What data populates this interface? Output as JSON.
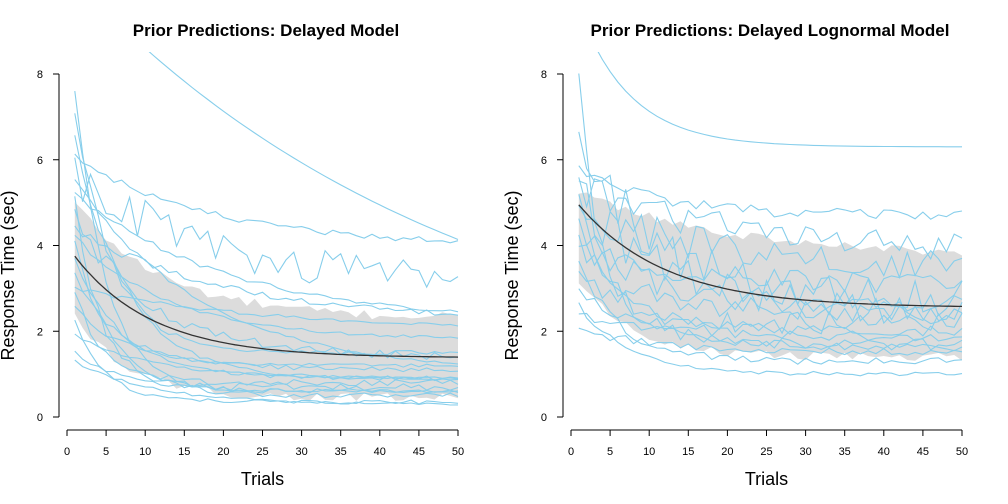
{
  "chart_data": [
    {
      "type": "line",
      "title": "Prior Predictions: Delayed Model",
      "xlabel": "Trials",
      "ylabel": "Response Time (sec)",
      "xlim": [
        0,
        50
      ],
      "ylim": [
        0,
        8
      ],
      "xticks": [
        0,
        5,
        10,
        15,
        20,
        25,
        30,
        35,
        40,
        45,
        50
      ],
      "yticks": [
        0,
        2,
        4,
        6,
        8
      ],
      "grid": false,
      "colors": {
        "band": "#dcdcdc",
        "sample": "#87ceeb",
        "mean": "#333333"
      },
      "mean": {
        "start": 3.75,
        "end": 1.38,
        "rate": 0.1
      },
      "band": {
        "lower_start": 2.4,
        "lower_end": 0.45,
        "lower_rate": 0.15,
        "upper_start": 5.0,
        "upper_end": 2.3,
        "upper_rate": 0.09
      },
      "samples": [
        {
          "start": 10.2,
          "end": 0.5,
          "rate": 0.02,
          "noise": 0.0
        },
        {
          "start": 7.5,
          "end": 0.6,
          "rate": 0.25,
          "noise": 0.15
        },
        {
          "start": 7.0,
          "end": 1.5,
          "rate": 0.2,
          "noise": 0.12
        },
        {
          "start": 6.5,
          "end": 0.9,
          "rate": 0.15,
          "noise": 0.1
        },
        {
          "start": 6.1,
          "end": 4.0,
          "rate": 0.06,
          "noise": 0.05
        },
        {
          "start": 5.8,
          "end": 3.2,
          "rate": 0.07,
          "noise": 0.35
        },
        {
          "start": 5.5,
          "end": 1.0,
          "rate": 0.06,
          "noise": 0.05
        },
        {
          "start": 5.2,
          "end": 2.2,
          "rate": 0.05,
          "noise": 0.05
        },
        {
          "start": 5.0,
          "end": 0.7,
          "rate": 0.3,
          "noise": 0.2
        },
        {
          "start": 4.7,
          "end": 1.4,
          "rate": 0.1,
          "noise": 0.2
        },
        {
          "start": 4.4,
          "end": 2.2,
          "rate": 0.05,
          "noise": 0.08
        },
        {
          "start": 4.2,
          "end": 1.8,
          "rate": 0.08,
          "noise": 0.05
        },
        {
          "start": 4.0,
          "end": 0.5,
          "rate": 0.2,
          "noise": 0.15
        },
        {
          "start": 3.6,
          "end": 0.9,
          "rate": 0.15,
          "noise": 0.15
        },
        {
          "start": 3.3,
          "end": 1.2,
          "rate": 0.18,
          "noise": 0.1
        },
        {
          "start": 3.0,
          "end": 2.0,
          "rate": 0.04,
          "noise": 0.05
        },
        {
          "start": 2.8,
          "end": 0.8,
          "rate": 0.25,
          "noise": 0.18
        },
        {
          "start": 2.5,
          "end": 1.1,
          "rate": 0.12,
          "noise": 0.15
        },
        {
          "start": 2.2,
          "end": 0.35,
          "rate": 0.25,
          "noise": 0.12
        },
        {
          "start": 1.9,
          "end": 0.9,
          "rate": 0.1,
          "noise": 0.08
        },
        {
          "start": 1.5,
          "end": 0.6,
          "rate": 0.15,
          "noise": 0.1
        },
        {
          "start": 1.3,
          "end": 0.3,
          "rate": 0.1,
          "noise": 0.08
        }
      ]
    },
    {
      "type": "line",
      "title": "Prior Predictions: Delayed Lognormal Model",
      "xlabel": "Trials",
      "ylabel": "Response Time (sec)",
      "xlim": [
        0,
        50
      ],
      "ylim": [
        0,
        8
      ],
      "xticks": [
        0,
        5,
        10,
        15,
        20,
        25,
        30,
        35,
        40,
        45,
        50
      ],
      "yticks": [
        0,
        2,
        4,
        6,
        8
      ],
      "grid": false,
      "colors": {
        "band": "#dcdcdc",
        "sample": "#87ceeb",
        "mean": "#333333"
      },
      "mean": {
        "start": 4.95,
        "end": 2.55,
        "rate": 0.09
      },
      "band": {
        "lower_start": 3.2,
        "lower_end": 1.4,
        "lower_rate": 0.15,
        "upper_start": 5.2,
        "upper_end": 3.7,
        "upper_rate": 0.05
      },
      "samples": [
        {
          "start": 9.5,
          "end": 6.3,
          "rate": 0.15,
          "noise": 0.0
        },
        {
          "start": 7.7,
          "end": 2.2,
          "rate": 0.35,
          "noise": 0.35
        },
        {
          "start": 6.3,
          "end": 2.8,
          "rate": 0.1,
          "noise": 0.45
        },
        {
          "start": 5.8,
          "end": 4.7,
          "rate": 0.1,
          "noise": 0.08
        },
        {
          "start": 5.4,
          "end": 3.8,
          "rate": 0.05,
          "noise": 0.25
        },
        {
          "start": 5.2,
          "end": 2.4,
          "rate": 0.08,
          "noise": 0.4
        },
        {
          "start": 5.0,
          "end": 1.7,
          "rate": 0.2,
          "noise": 0.25
        },
        {
          "start": 4.7,
          "end": 3.3,
          "rate": 0.04,
          "noise": 0.3
        },
        {
          "start": 4.4,
          "end": 2.6,
          "rate": 0.12,
          "noise": 0.3
        },
        {
          "start": 4.1,
          "end": 2.0,
          "rate": 0.15,
          "noise": 0.2
        },
        {
          "start": 3.8,
          "end": 3.0,
          "rate": 0.05,
          "noise": 0.25
        },
        {
          "start": 3.5,
          "end": 1.3,
          "rate": 0.18,
          "noise": 0.2
        },
        {
          "start": 3.2,
          "end": 2.3,
          "rate": 0.06,
          "noise": 0.3
        },
        {
          "start": 2.9,
          "end": 1.6,
          "rate": 0.1,
          "noise": 0.15
        },
        {
          "start": 2.6,
          "end": 1.0,
          "rate": 0.15,
          "noise": 0.12
        },
        {
          "start": 2.3,
          "end": 1.8,
          "rate": 0.05,
          "noise": 0.2
        },
        {
          "start": 2.0,
          "end": 1.5,
          "rate": 0.08,
          "noise": 0.15
        }
      ]
    }
  ]
}
